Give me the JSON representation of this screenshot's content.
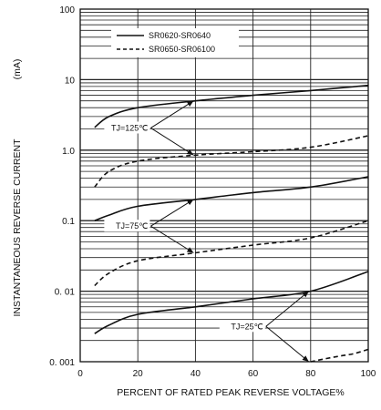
{
  "chart_data": {
    "type": "line",
    "title": "",
    "xlabel": "PERCENT OF RATED PEAK REVERSE VOLTAGE%",
    "ylabel": "INSTANTANEOUS REVERSE CURRENT",
    "ylabel_unit": "(mA)",
    "xlim": [
      0,
      100
    ],
    "ylim": [
      0.001,
      100
    ],
    "yscale": "log",
    "grid": "on",
    "legend_position": "top-center",
    "x_ticks": [
      "0",
      "20",
      "40",
      "60",
      "80",
      "100"
    ],
    "y_ticks": [
      {
        "value": 100,
        "label": "100"
      },
      {
        "value": 10,
        "label": "10"
      },
      {
        "value": 1,
        "label": "1.0"
      },
      {
        "value": 0.1,
        "label": "0.1"
      },
      {
        "value": 0.01,
        "label": "0. 01"
      },
      {
        "value": 0.001,
        "label": "0. 001"
      }
    ],
    "series": [
      {
        "name": "SR0620-SR0640",
        "style": "solid",
        "x": [
          5,
          10,
          20,
          40,
          60,
          80,
          100
        ],
        "values": [
          2.1,
          3.0,
          4.0,
          5.0,
          6.0,
          7.0,
          8.3
        ]
      },
      {
        "name": "SR0650-SR06100",
        "style": "dashed",
        "x": [
          5,
          10,
          20,
          40,
          60,
          80,
          100
        ],
        "values": [
          0.3,
          0.5,
          0.7,
          0.85,
          0.95,
          1.1,
          1.6
        ]
      },
      {
        "name": "SR0620-SR0640",
        "style": "solid",
        "x": [
          5,
          10,
          20,
          40,
          60,
          80,
          100
        ],
        "values": [
          0.1,
          0.12,
          0.16,
          0.2,
          0.25,
          0.3,
          0.42
        ]
      },
      {
        "name": "SR0650-SR06100",
        "style": "dashed",
        "x": [
          5,
          10,
          20,
          40,
          60,
          80,
          100
        ],
        "values": [
          0.012,
          0.018,
          0.027,
          0.035,
          0.045,
          0.057,
          0.1
        ]
      },
      {
        "name": "SR0620-SR0640",
        "style": "solid",
        "x": [
          5,
          10,
          20,
          40,
          60,
          80,
          100
        ],
        "values": [
          0.0025,
          0.0033,
          0.0047,
          0.006,
          0.0078,
          0.01,
          0.019
        ]
      },
      {
        "name": "SR0650-SR06100",
        "style": "dashed",
        "x": [
          80,
          85,
          90,
          95,
          100
        ],
        "values": [
          0.001,
          0.0011,
          0.0012,
          0.0013,
          0.0015
        ]
      }
    ],
    "legend": [
      {
        "label": "SR0620-SR0640",
        "style": "solid"
      },
      {
        "label": "SR0650-SR06100",
        "style": "dashed"
      }
    ],
    "annotations": [
      {
        "text": "TJ=125℃",
        "targets": [
          {
            "x": 40,
            "y": 5.0
          },
          {
            "x": 40,
            "y": 0.85
          }
        ]
      },
      {
        "text": "TJ=75℃",
        "targets": [
          {
            "x": 40,
            "y": 0.2
          },
          {
            "x": 40,
            "y": 0.035
          }
        ]
      },
      {
        "text": "TJ=25℃",
        "targets": [
          {
            "x": 80,
            "y": 0.01
          },
          {
            "x": 80,
            "y": 0.001
          }
        ]
      }
    ]
  }
}
